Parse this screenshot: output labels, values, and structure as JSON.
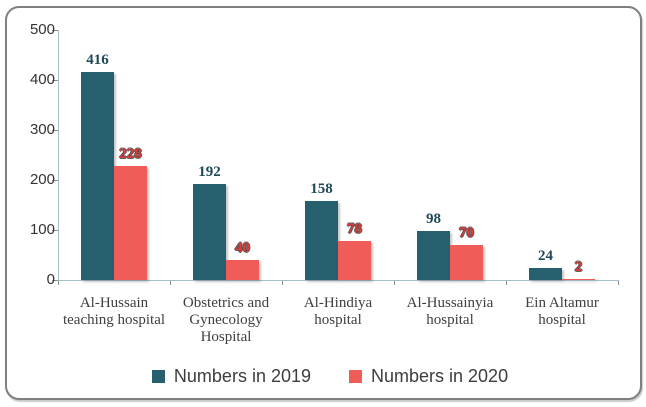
{
  "chart_data": {
    "type": "bar",
    "categories": [
      "Al-Hussain teaching hospital",
      "Obstetrics and Gynecology Hospital",
      "Al-Hindiya hospital",
      "Al-Hussainyia hospital",
      "Ein Altamur hospital"
    ],
    "series": [
      {
        "name": "Numbers in 2019",
        "values": [
          416,
          192,
          158,
          98,
          24
        ],
        "color": "#265f6e",
        "label_color": "#1e4957",
        "label_outline": false
      },
      {
        "name": "Numbers in 2020",
        "values": [
          228,
          40,
          78,
          70,
          2
        ],
        "color": "#f05c58",
        "label_color": "#e43a38",
        "label_outline": true
      }
    ],
    "title": "",
    "xlabel": "",
    "ylabel": "",
    "ylim": [
      0,
      500
    ],
    "yticks": [
      0,
      100,
      200,
      300,
      400,
      500
    ],
    "grid": false,
    "legend_position": "bottom"
  },
  "colors": {
    "frame_border": "#7f7f7f",
    "axis_line": "#a3bfca",
    "tick": "#8c8c8c",
    "axis_text": "#333333",
    "category_text": "#3f3f3f",
    "legend_text": "#3d3d3d",
    "background": "#ffffff"
  }
}
